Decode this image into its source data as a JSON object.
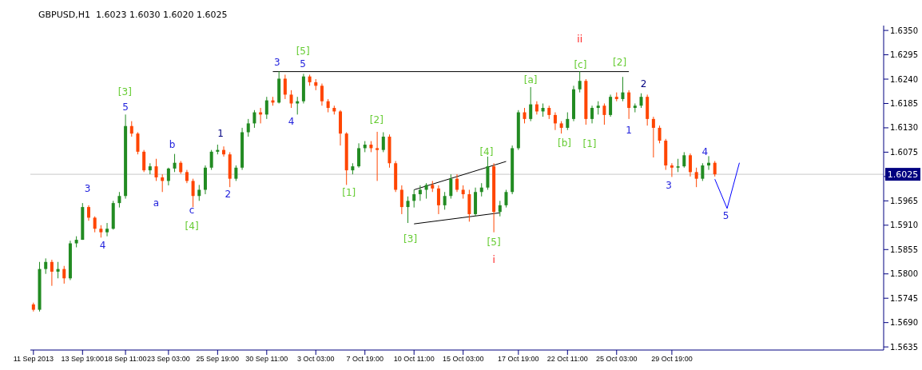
{
  "chart_data": {
    "type": "candlestick",
    "title": "GBPUSD,H1  1.6023 1.6030 1.6020 1.6025",
    "categories": [
      "11 Sep 2013",
      null,
      null,
      null,
      null,
      null,
      null,
      null,
      "13 Sep 19:00",
      null,
      null,
      null,
      null,
      null,
      null,
      "18 Sep 11:00",
      null,
      null,
      null,
      null,
      null,
      null,
      "23 Sep 03:00",
      null,
      null,
      null,
      null,
      null,
      null,
      null,
      "25 Sep 19:00",
      null,
      null,
      null,
      null,
      null,
      null,
      null,
      "30 Sep 11:00",
      null,
      null,
      null,
      null,
      null,
      null,
      null,
      "3 Oct 03:00",
      null,
      null,
      null,
      null,
      null,
      null,
      null,
      "7 Oct 19:00",
      null,
      null,
      null,
      null,
      null,
      null,
      null,
      "10 Oct 11:00",
      null,
      null,
      null,
      null,
      null,
      null,
      null,
      "15 Oct 03:00",
      null,
      null,
      null,
      null,
      null,
      null,
      null,
      null,
      "17 Oct 19:00",
      null,
      null,
      null,
      null,
      null,
      null,
      null,
      "22 Oct 11:00",
      null,
      null,
      null,
      null,
      null,
      null,
      null,
      "25 Oct 03:00",
      null,
      null,
      null,
      null,
      null,
      null,
      null,
      null,
      "29 Oct 19:00",
      null,
      null,
      null,
      null,
      null,
      null,
      null,
      null,
      null,
      null,
      null,
      null,
      null,
      null,
      null,
      null,
      null,
      null,
      null,
      null,
      null,
      null,
      null,
      null,
      null,
      null,
      null,
      null,
      null,
      null,
      null,
      null,
      null,
      null
    ],
    "ohlc": [
      [
        1.5731,
        1.5735,
        1.5715,
        1.5719
      ],
      [
        1.5719,
        1.5827,
        1.5715,
        1.5811
      ],
      [
        1.5811,
        1.5835,
        1.58,
        1.5827
      ],
      [
        1.5827,
        1.5832,
        1.5773,
        1.5805
      ],
      [
        1.5805,
        1.5827,
        1.579,
        1.5811
      ],
      [
        1.5811,
        1.5818,
        1.5778,
        1.579
      ],
      [
        1.579,
        1.5875,
        1.5786,
        1.5869
      ],
      [
        1.5869,
        1.5885,
        1.586,
        1.5877
      ],
      [
        1.5877,
        1.596,
        1.5877,
        1.5951
      ],
      [
        1.5951,
        1.5955,
        1.592,
        1.5927
      ],
      [
        1.5927,
        1.593,
        1.5894,
        1.5902
      ],
      [
        1.5902,
        1.591,
        1.5882,
        1.5894
      ],
      [
        1.5894,
        1.5915,
        1.5885,
        1.5902
      ],
      [
        1.5902,
        1.5965,
        1.59,
        1.596
      ],
      [
        1.596,
        1.5985,
        1.595,
        1.5976
      ],
      [
        1.5976,
        1.616,
        1.597,
        1.6134
      ],
      [
        1.6134,
        1.6145,
        1.611,
        1.6117
      ],
      [
        1.6117,
        1.612,
        1.607,
        1.6076
      ],
      [
        1.6076,
        1.608,
        1.603,
        1.6034
      ],
      [
        1.6034,
        1.605,
        1.6025,
        1.6043
      ],
      [
        1.6043,
        1.606,
        1.601,
        1.6018
      ],
      [
        1.6018,
        1.6025,
        1.5985,
        1.601
      ],
      [
        1.601,
        1.604,
        1.6,
        1.6038
      ],
      [
        1.6038,
        1.6071,
        1.603,
        1.6051
      ],
      [
        1.6051,
        1.6055,
        1.6026,
        1.603
      ],
      [
        1.603,
        1.6035,
        1.6005,
        1.601
      ],
      [
        1.601,
        1.6015,
        1.5951,
        1.5976
      ],
      [
        1.5976,
        1.6001,
        1.5965,
        1.599
      ],
      [
        1.599,
        1.6045,
        1.598,
        1.604
      ],
      [
        1.604,
        1.608,
        1.6035,
        1.6076
      ],
      [
        1.6076,
        1.6092,
        1.607,
        1.608
      ],
      [
        1.608,
        1.6088,
        1.6065,
        1.607
      ],
      [
        1.607,
        1.6075,
        1.5996,
        1.6015
      ],
      [
        1.6015,
        1.6045,
        1.601,
        1.604
      ],
      [
        1.604,
        1.613,
        1.6035,
        1.612
      ],
      [
        1.612,
        1.615,
        1.611,
        1.614
      ],
      [
        1.614,
        1.617,
        1.613,
        1.6165
      ],
      [
        1.6165,
        1.6175,
        1.614,
        1.616
      ],
      [
        1.616,
        1.62,
        1.615,
        1.6192
      ],
      [
        1.6192,
        1.62,
        1.618,
        1.6187
      ],
      [
        1.6187,
        1.6258,
        1.6185,
        1.6241
      ],
      [
        1.6241,
        1.625,
        1.6195,
        1.6205
      ],
      [
        1.6205,
        1.6215,
        1.6175,
        1.6185
      ],
      [
        1.6185,
        1.62,
        1.616,
        1.619
      ],
      [
        1.619,
        1.6252,
        1.6185,
        1.6246
      ],
      [
        1.6246,
        1.625,
        1.6225,
        1.6233
      ],
      [
        1.6233,
        1.624,
        1.6215,
        1.6225
      ],
      [
        1.6225,
        1.623,
        1.618,
        1.619
      ],
      [
        1.619,
        1.6195,
        1.6165,
        1.6175
      ],
      [
        1.6175,
        1.618,
        1.616,
        1.6167
      ],
      [
        1.6167,
        1.617,
        1.609,
        1.6117
      ],
      [
        1.6117,
        1.612,
        1.6001,
        1.6034
      ],
      [
        1.6034,
        1.605,
        1.6025,
        1.6043
      ],
      [
        1.6043,
        1.6095,
        1.604,
        1.6084
      ],
      [
        1.6084,
        1.61,
        1.6075,
        1.6092
      ],
      [
        1.6092,
        1.61,
        1.6075,
        1.6084
      ],
      [
        1.6084,
        1.6121,
        1.601,
        1.608
      ],
      [
        1.608,
        1.612,
        1.6075,
        1.611
      ],
      [
        1.611,
        1.6115,
        1.604,
        1.605
      ],
      [
        1.605,
        1.6055,
        1.5985,
        1.599
      ],
      [
        1.599,
        1.6,
        1.5935,
        1.5951
      ],
      [
        1.5951,
        1.5975,
        1.5915,
        1.5965
      ],
      [
        1.5965,
        1.599,
        1.595,
        1.598
      ],
      [
        1.598,
        1.6,
        1.5965,
        1.599
      ],
      [
        1.599,
        1.6005,
        1.597,
        1.6001
      ],
      [
        1.6001,
        1.601,
        1.5985,
        1.5993
      ],
      [
        1.5993,
        1.6,
        1.5935,
        1.5955
      ],
      [
        1.5955,
        1.5985,
        1.5945,
        1.5976
      ],
      [
        1.5976,
        1.6025,
        1.597,
        1.6015
      ],
      [
        1.6015,
        1.6025,
        1.5985,
        1.599
      ],
      [
        1.599,
        1.6,
        1.597,
        1.598
      ],
      [
        1.598,
        1.599,
        1.5918,
        1.5935
      ],
      [
        1.5935,
        1.5995,
        1.593,
        1.5985
      ],
      [
        1.5985,
        1.6005,
        1.5975,
        1.5995
      ],
      [
        1.5995,
        1.6065,
        1.599,
        1.6043
      ],
      [
        1.6043,
        1.605,
        1.5894,
        1.594
      ],
      [
        1.594,
        1.5965,
        1.593,
        1.5955
      ],
      [
        1.5955,
        1.599,
        1.595,
        1.5985
      ],
      [
        1.5985,
        1.609,
        1.598,
        1.6084
      ],
      [
        1.6084,
        1.617,
        1.608,
        1.6165
      ],
      [
        1.6165,
        1.6175,
        1.614,
        1.615
      ],
      [
        1.615,
        1.6222,
        1.6145,
        1.6183
      ],
      [
        1.6183,
        1.619,
        1.616,
        1.6167
      ],
      [
        1.6167,
        1.6185,
        1.6155,
        1.6175
      ],
      [
        1.6175,
        1.618,
        1.615,
        1.6159
      ],
      [
        1.6159,
        1.6165,
        1.6125,
        1.614
      ],
      [
        1.614,
        1.6145,
        1.6117,
        1.613
      ],
      [
        1.613,
        1.6165,
        1.6125,
        1.615
      ],
      [
        1.615,
        1.6225,
        1.6145,
        1.6217
      ],
      [
        1.6217,
        1.6258,
        1.621,
        1.6236
      ],
      [
        1.6236,
        1.624,
        1.6137,
        1.615
      ],
      [
        1.615,
        1.618,
        1.614,
        1.6175
      ],
      [
        1.6175,
        1.619,
        1.616,
        1.618
      ],
      [
        1.618,
        1.6185,
        1.6137,
        1.6159
      ],
      [
        1.6159,
        1.6205,
        1.6155,
        1.62
      ],
      [
        1.62,
        1.621,
        1.619,
        1.6195
      ],
      [
        1.6195,
        1.6245,
        1.619,
        1.621
      ],
      [
        1.621,
        1.6215,
        1.615,
        1.6175
      ],
      [
        1.6175,
        1.6185,
        1.6165,
        1.618
      ],
      [
        1.618,
        1.6208,
        1.6175,
        1.62
      ],
      [
        1.62,
        1.6205,
        1.6135,
        1.615
      ],
      [
        1.615,
        1.6155,
        1.6063,
        1.613
      ],
      [
        1.613,
        1.6135,
        1.6095,
        1.6101
      ],
      [
        1.6101,
        1.6105,
        1.6035,
        1.6045
      ],
      [
        1.6045,
        1.605,
        1.6019,
        1.604
      ],
      [
        1.604,
        1.606,
        1.603,
        1.6043
      ],
      [
        1.6043,
        1.6075,
        1.604,
        1.6068
      ],
      [
        1.6068,
        1.6072,
        1.602,
        1.603
      ],
      [
        1.603,
        1.604,
        1.5996,
        1.6015
      ],
      [
        1.6015,
        1.605,
        1.601,
        1.6045
      ],
      [
        1.6045,
        1.6066,
        1.6035,
        1.6051
      ],
      [
        1.6051,
        1.6055,
        1.602,
        1.6025
      ],
      null,
      null,
      null,
      null,
      null,
      null,
      null,
      null,
      null,
      null,
      null,
      null,
      null,
      null,
      null,
      null,
      null,
      null,
      null,
      null,
      null,
      null,
      null,
      null,
      null,
      null,
      null
    ],
    "colors": [
      "#ff4500",
      "#228b22",
      "#228b22",
      "#ff4500",
      "#228b22",
      "#ff4500",
      "#228b22",
      "#228b22",
      "#228b22",
      "#ff4500",
      "#ff4500",
      "#ff4500",
      "#228b22",
      "#228b22",
      "#228b22",
      "#228b22",
      "#ff4500",
      "#ff4500",
      "#ff4500",
      "#228b22",
      "#ff4500",
      "#ff4500",
      "#228b22",
      "#228b22",
      "#ff4500",
      "#ff4500",
      "#ff4500",
      "#228b22",
      "#228b22",
      "#228b22",
      "#228b22",
      "#ff4500",
      "#ff4500",
      "#228b22",
      "#228b22",
      "#228b22",
      "#228b22",
      "#ff4500",
      "#228b22",
      "#ff4500",
      "#228b22",
      "#ff4500",
      "#ff4500",
      "#228b22",
      "#228b22",
      "#ff4500",
      "#ff4500",
      "#ff4500",
      "#ff4500",
      "#ff4500",
      "#ff4500",
      "#ff4500",
      "#228b22",
      "#228b22",
      "#228b22",
      "#ff4500",
      "#ff4500",
      "#228b22",
      "#ff4500",
      "#ff4500",
      "#ff4500",
      "#228b22",
      "#228b22",
      "#228b22",
      "#228b22",
      "#ff4500",
      "#ff4500",
      "#228b22",
      "#228b22",
      "#ff4500",
      "#ff4500",
      "#ff4500",
      "#228b22",
      "#228b22",
      "#228b22",
      "#ff4500",
      "#228b22",
      "#228b22",
      "#228b22",
      "#228b22",
      "#ff4500",
      "#228b22",
      "#ff4500",
      "#228b22",
      "#ff4500",
      "#ff4500",
      "#ff4500",
      "#228b22",
      "#228b22",
      "#228b22",
      "#ff4500",
      "#228b22",
      "#228b22",
      "#ff4500",
      "#228b22",
      "#ff4500",
      "#228b22",
      "#ff4500",
      "#228b22",
      "#228b22",
      "#ff4500",
      "#ff4500",
      "#ff4500",
      "#ff4500",
      "#ff4500",
      "#228b22",
      "#228b22",
      "#ff4500",
      "#ff4500",
      "#228b22",
      "#228b22",
      "#ff4500",
      null,
      null,
      null,
      null,
      null,
      null,
      null,
      null,
      null,
      null,
      null,
      null,
      null,
      null,
      null,
      null,
      null,
      null,
      null,
      null,
      null,
      null,
      null,
      null,
      null,
      null,
      null
    ],
    "series": [
      {
        "type": "line",
        "values": [
          null,
          null,
          null,
          null,
          null,
          null,
          null,
          null,
          null,
          null,
          null,
          null,
          null,
          null,
          null,
          null,
          null,
          null,
          null,
          null,
          null,
          null,
          null,
          null,
          null,
          null,
          null,
          null,
          null,
          null,
          null,
          null,
          null,
          null,
          null,
          null,
          null,
          null,
          null,
          1.6257,
          null,
          null,
          null,
          null,
          null,
          null,
          null,
          null,
          null,
          null,
          null,
          null,
          null,
          null,
          null,
          null,
          null,
          null,
          null,
          null,
          null,
          null,
          null,
          null,
          null,
          null,
          null,
          null,
          null,
          null,
          null,
          null,
          null,
          null,
          null,
          null,
          null,
          null,
          null,
          null,
          null,
          null,
          null,
          null,
          null,
          null,
          null,
          null,
          null,
          null,
          null,
          null,
          null,
          null,
          null,
          null,
          null,
          1.6257,
          null,
          null,
          null,
          null,
          null,
          null,
          null,
          null,
          null,
          null,
          null,
          null,
          null,
          null,
          null,
          null,
          null,
          null,
          null,
          null,
          null,
          null,
          null,
          null,
          null,
          null,
          null,
          null,
          null,
          null,
          null,
          null,
          null,
          null,
          null,
          null,
          null,
          null,
          null,
          null,
          null
        ],
        "color": "#000000"
      },
      {
        "type": "line",
        "values": [
          null,
          null,
          null,
          null,
          null,
          null,
          null,
          null,
          null,
          null,
          null,
          null,
          null,
          null,
          null,
          null,
          null,
          null,
          null,
          null,
          null,
          null,
          null,
          null,
          null,
          null,
          null,
          null,
          null,
          null,
          null,
          null,
          null,
          null,
          null,
          null,
          null,
          null,
          null,
          null,
          null,
          null,
          null,
          null,
          null,
          null,
          null,
          null,
          null,
          null,
          null,
          null,
          null,
          null,
          null,
          null,
          null,
          null,
          null,
          null,
          null,
          null,
          1.599,
          null,
          null,
          null,
          null,
          null,
          null,
          null,
          null,
          null,
          null,
          null,
          null,
          null,
          null,
          1.6054,
          null,
          null,
          null,
          null,
          null,
          null,
          null,
          null,
          null,
          null,
          null,
          null,
          null,
          null,
          null,
          null,
          null,
          null,
          null,
          null,
          null,
          null,
          null,
          null,
          null,
          null,
          null,
          null,
          null,
          null,
          null,
          null,
          null,
          null,
          null,
          null,
          null,
          null,
          null,
          null,
          null,
          null,
          null,
          null,
          null,
          null,
          null,
          null,
          null,
          null,
          null,
          null,
          null,
          null,
          null,
          null,
          null,
          null,
          null,
          null,
          null
        ],
        "color": "#000000"
      },
      {
        "type": "line",
        "values": [
          null,
          null,
          null,
          null,
          null,
          null,
          null,
          null,
          null,
          null,
          null,
          null,
          null,
          null,
          null,
          null,
          null,
          null,
          null,
          null,
          null,
          null,
          null,
          null,
          null,
          null,
          null,
          null,
          null,
          null,
          null,
          null,
          null,
          null,
          null,
          null,
          null,
          null,
          null,
          null,
          null,
          null,
          null,
          null,
          null,
          null,
          null,
          null,
          null,
          null,
          null,
          null,
          null,
          null,
          null,
          null,
          null,
          null,
          null,
          null,
          null,
          null,
          1.5913,
          null,
          null,
          null,
          null,
          null,
          null,
          null,
          null,
          null,
          null,
          null,
          null,
          null,
          1.5938,
          null,
          null,
          null,
          null,
          null,
          null,
          null,
          null,
          null,
          null,
          null,
          null,
          null,
          null,
          null,
          null,
          null,
          null,
          null,
          null,
          null,
          null,
          null,
          null,
          null,
          null,
          null,
          null,
          null,
          null,
          null,
          null,
          null,
          null,
          null,
          null,
          null,
          null,
          null,
          null,
          null,
          null,
          null,
          null,
          null,
          null,
          null,
          null,
          null,
          null,
          null,
          null,
          null,
          null,
          null,
          null,
          null,
          null,
          null,
          null,
          null,
          null
        ],
        "color": "#000000"
      },
      {
        "type": "line",
        "values": [
          null,
          null,
          null,
          null,
          null,
          null,
          null,
          null,
          null,
          null,
          null,
          null,
          null,
          null,
          null,
          null,
          null,
          null,
          null,
          null,
          null,
          null,
          null,
          null,
          null,
          null,
          null,
          null,
          null,
          null,
          null,
          null,
          null,
          null,
          null,
          null,
          null,
          null,
          null,
          null,
          null,
          null,
          null,
          null,
          null,
          null,
          null,
          null,
          null,
          null,
          null,
          null,
          null,
          null,
          null,
          null,
          null,
          null,
          null,
          null,
          null,
          null,
          null,
          null,
          null,
          null,
          null,
          null,
          null,
          null,
          null,
          null,
          null,
          null,
          null,
          null,
          null,
          null,
          null,
          null,
          null,
          null,
          null,
          null,
          null,
          null,
          null,
          null,
          null,
          null,
          null,
          null,
          null,
          null,
          null,
          null,
          null,
          null,
          null,
          null,
          null,
          null,
          null,
          null,
          null,
          null,
          null,
          null,
          null,
          null,
          null,
          1.6014,
          null,
          1.5948,
          null,
          1.6051,
          null,
          null,
          null,
          null,
          null,
          null,
          null,
          null,
          null,
          null,
          null,
          null,
          null,
          null,
          null,
          null,
          null,
          null,
          null,
          null,
          null,
          null,
          null
        ],
        "color": "#0000ff"
      }
    ],
    "ref_lines": [
      {
        "axis": "y",
        "value": 1.6025,
        "label": "1.6025",
        "color": "#c8c8c8"
      }
    ],
    "annotations": [
      "3",
      "4",
      "[3]",
      "5",
      "a",
      "b",
      "c",
      "[4]",
      "1",
      "2",
      "3",
      "[5]",
      "5",
      "4",
      "[1]",
      "[2]",
      "[3]",
      "[4]",
      "[5]",
      "i",
      "[a]",
      "ii",
      "[c]",
      "[b]",
      "[1]",
      "[2]",
      "2",
      "1",
      "3",
      "4",
      "5"
    ],
    "ylim": [
      1.5628,
      1.6361
    ],
    "yticks": [
      {
        "value": 1.635,
        "label": "1.6350"
      },
      {
        "value": 1.6295,
        "label": "1.6295"
      },
      {
        "value": 1.624,
        "label": "1.6240"
      },
      {
        "value": 1.6185,
        "label": "1.6185"
      },
      {
        "value": 1.613,
        "label": "1.6130"
      },
      {
        "value": 1.6075,
        "label": "1.6075"
      },
      {
        "value": 1.602,
        "label": null
      },
      {
        "value": 1.5965,
        "label": "1.5965"
      },
      {
        "value": 1.591,
        "label": "1.5910"
      },
      {
        "value": 1.5855,
        "label": "1.5855"
      },
      {
        "value": 1.58,
        "label": "1.5800"
      },
      {
        "value": 1.5745,
        "label": "1.5745"
      },
      {
        "value": 1.569,
        "label": "1.5690"
      },
      {
        "value": 1.5635,
        "label": "1.5635"
      }
    ],
    "marker": "none"
  }
}
